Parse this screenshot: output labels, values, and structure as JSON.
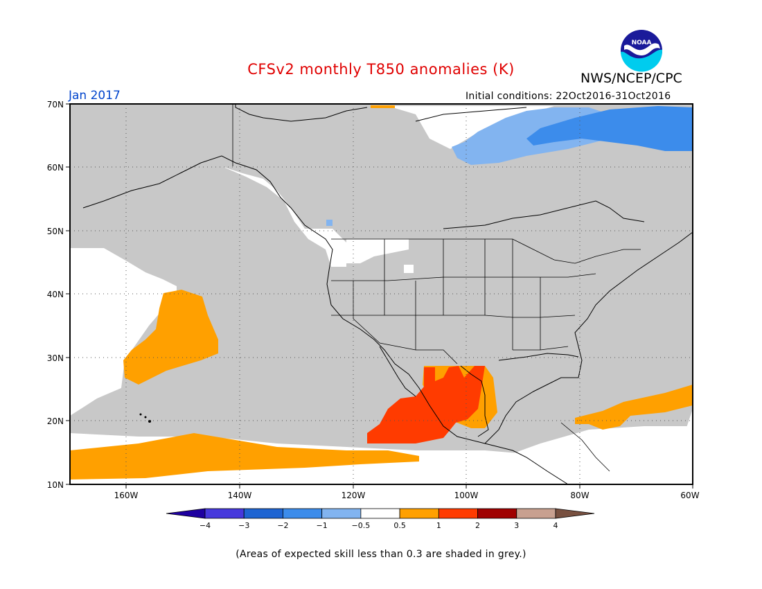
{
  "title": "CFSv2 monthly T850 anomalies (K)",
  "organization": "NWS/NCEP/CPC",
  "logo_text": "NOAA",
  "valid_month": "Jan 2017",
  "initial_conditions": "Initial conditions: 22Oct2016-31Oct2016",
  "footnote": "(Areas of expected skill less than 0.3 are shaded in grey.)",
  "map": {
    "lon_range": [
      -170,
      -60
    ],
    "lat_range": [
      10,
      70
    ],
    "lat_labels": [
      "10N",
      "20N",
      "30N",
      "40N",
      "50N",
      "60N",
      "70N"
    ],
    "lon_labels": [
      "160W",
      "140W",
      "120W",
      "100W",
      "80W",
      "60W"
    ],
    "low_skill_color": "#c8c8c8",
    "regions": [
      {
        "class": "strong-warm",
        "color": "#ff3b00"
      },
      {
        "class": "warm",
        "color": "#ffa000"
      },
      {
        "class": "cool",
        "color": "#82b4f0"
      },
      {
        "class": "cooler",
        "color": "#3c8ceb"
      }
    ]
  },
  "colorbar": {
    "colors": [
      "#1e00a0",
      "#4638dc",
      "#1e64d2",
      "#3c8ceb",
      "#82b4f0",
      "#ffffff",
      "#ffa000",
      "#ff3b00",
      "#a00000",
      "#c8a090",
      "#785040"
    ],
    "labels": [
      "−4",
      "−3",
      "−2",
      "−1",
      "−0.5",
      "0.5",
      "1",
      "2",
      "3",
      "4"
    ]
  }
}
